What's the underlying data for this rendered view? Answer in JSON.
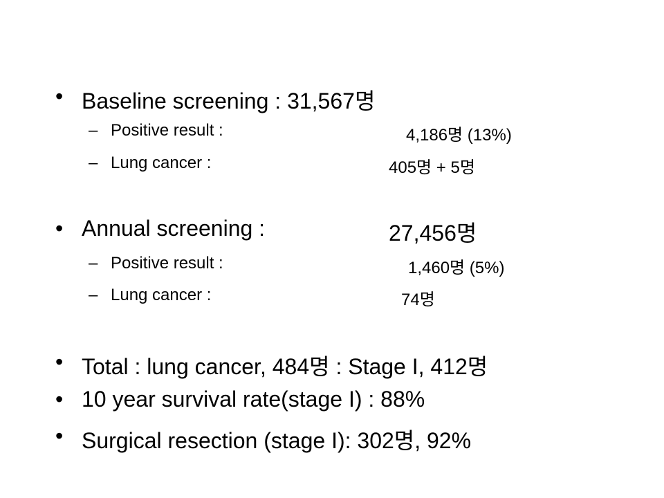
{
  "slide": {
    "sections": [
      {
        "bullet": "•",
        "label": "Baseline screening : 31,567명",
        "items": [
          {
            "dash": "–",
            "label": "Positive result :",
            "value": "4,186명 (13%)"
          },
          {
            "dash": "–",
            "label": "Lung cancer :",
            "value": "405명 + 5명"
          }
        ]
      },
      {
        "bullet": "•",
        "label": "Annual screening :",
        "value": "27,456명",
        "items": [
          {
            "dash": "–",
            "label": "Positive result :",
            "value": "1,460명 (5%)"
          },
          {
            "dash": "–",
            "label": "Lung cancer :",
            "value": "74명"
          }
        ]
      }
    ],
    "summary": [
      {
        "bullet": "•",
        "text": "Total : lung cancer, 484명 : Stage I, 412명"
      },
      {
        "bullet": "•",
        "text": "10 year survival rate(stage I) : 88%"
      },
      {
        "bullet": "•",
        "text": "Surgical resection (stage I): 302명, 92%"
      }
    ]
  }
}
